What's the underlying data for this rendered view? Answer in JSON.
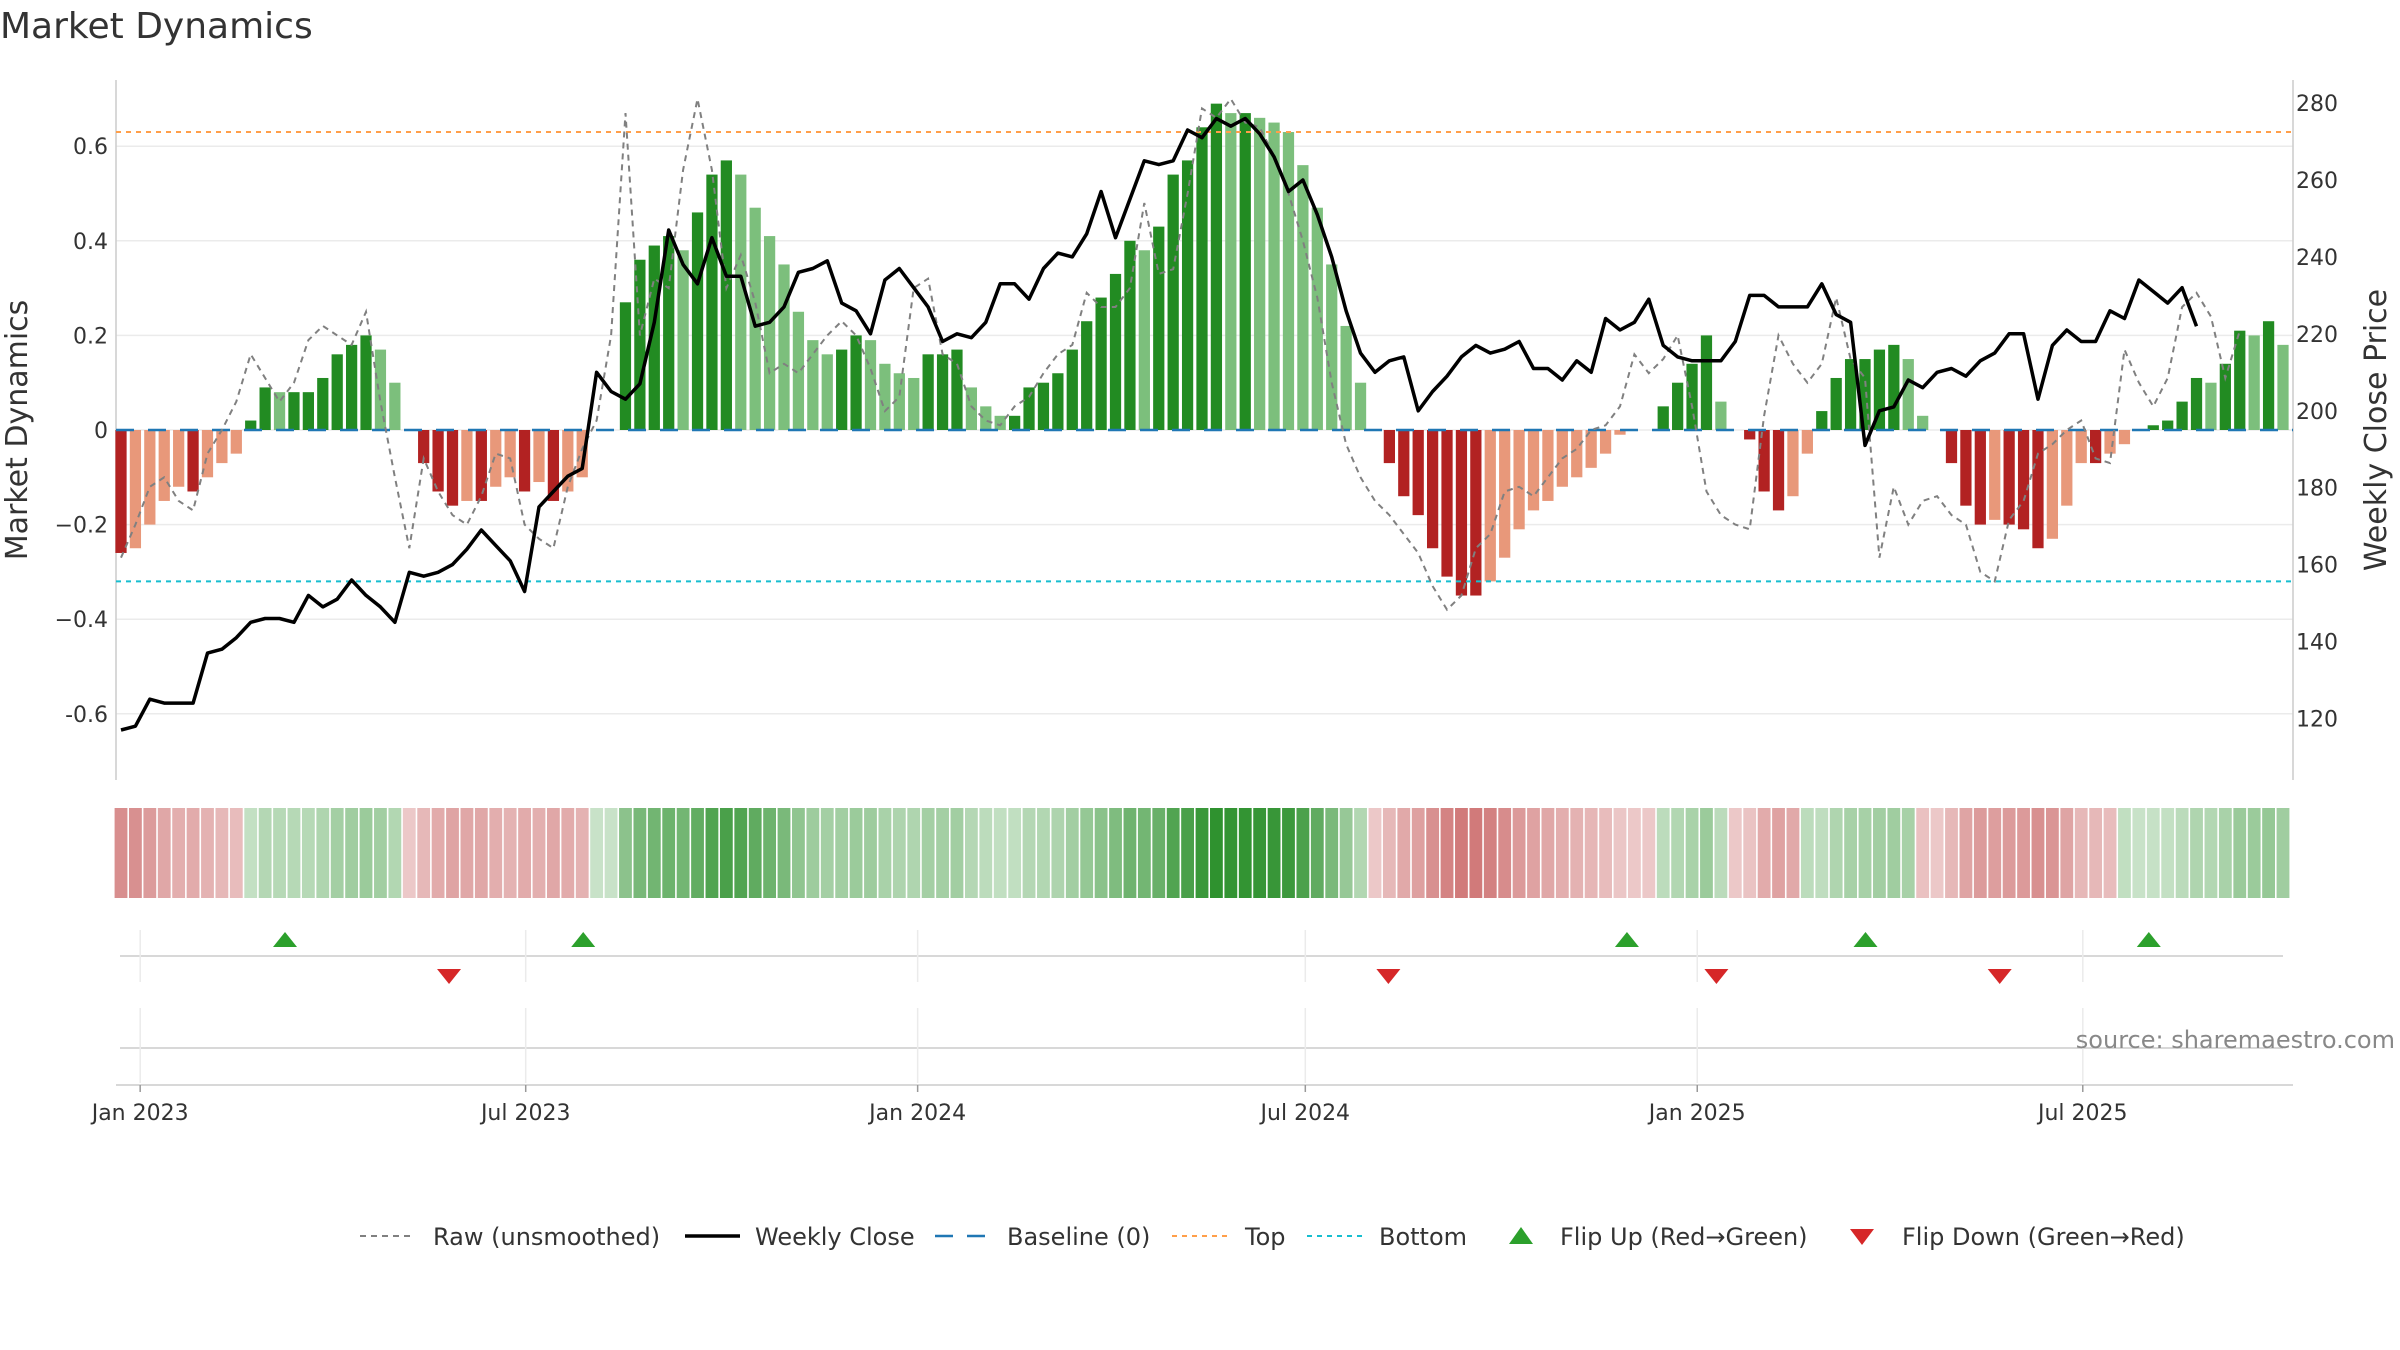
{
  "title": "Market Dynamics",
  "source": "source: sharemaestro.com",
  "chart_data": {
    "type": "bar",
    "colors": {
      "strong_green": "#228b22",
      "light_green": "#7cbf7c",
      "strong_red": "#b22222",
      "light_red": "#e8987a",
      "raw": "#808080",
      "close": "#000000",
      "baseline": "#1f77b4",
      "top": "#ff9f4a",
      "bottom": "#17becf",
      "flip_up": "#2ca02c",
      "flip_down": "#d62728"
    },
    "x_ticks": [
      "Jan 2023",
      "Jul 2023",
      "Jan 2024",
      "Jul 2024",
      "Jan 2025",
      "Jul 2025"
    ],
    "x_tick_dates": [
      "2023-01-01",
      "2023-07-01",
      "2024-01-01",
      "2024-07-01",
      "2025-01-01",
      "2025-07-01"
    ],
    "dates": [
      "2022-12-23",
      "2025-10-03"
    ],
    "ylabel": "Market Dynamics",
    "ylim": [
      -0.74,
      0.74
    ],
    "yticks": [
      -0.6,
      -0.4,
      -0.2,
      0,
      0.2,
      0.4,
      0.6
    ],
    "ytick_labels": [
      "-0.6",
      "−0.4",
      "−0.2",
      "0",
      "0.2",
      "0.4",
      "0.6"
    ],
    "y2label": "Weekly Close Price",
    "y2lim": [
      104,
      286
    ],
    "y2ticks": [
      120,
      140,
      160,
      180,
      200,
      220,
      240,
      260,
      280
    ],
    "top_line": 0.63,
    "bottom_line": -0.32,
    "bars": [
      -0.26,
      -0.25,
      -0.2,
      -0.15,
      -0.12,
      -0.13,
      -0.1,
      -0.07,
      -0.05,
      0.02,
      0.09,
      0.08,
      0.08,
      0.08,
      0.11,
      0.16,
      0.18,
      0.2,
      0.17,
      0.1,
      0,
      -0.07,
      -0.13,
      -0.16,
      -0.15,
      -0.15,
      -0.12,
      -0.1,
      -0.13,
      -0.11,
      -0.15,
      -0.13,
      -0.1,
      0,
      0,
      0.27,
      0.36,
      0.39,
      0.41,
      0.38,
      0.46,
      0.54,
      0.57,
      0.54,
      0.47,
      0.41,
      0.35,
      0.25,
      0.19,
      0.16,
      0.17,
      0.2,
      0.19,
      0.14,
      0.12,
      0.11,
      0.16,
      0.16,
      0.17,
      0.09,
      0.05,
      0.03,
      0.03,
      0.09,
      0.1,
      0.12,
      0.17,
      0.23,
      0.28,
      0.33,
      0.4,
      0.38,
      0.43,
      0.54,
      0.57,
      0.64,
      0.69,
      0.67,
      0.67,
      0.66,
      0.65,
      0.63,
      0.56,
      0.47,
      0.35,
      0.22,
      0.1,
      0,
      -0.07,
      -0.14,
      -0.18,
      -0.25,
      -0.31,
      -0.35,
      -0.35,
      -0.32,
      -0.27,
      -0.21,
      -0.17,
      -0.15,
      -0.12,
      -0.1,
      -0.08,
      -0.05,
      -0.01,
      0,
      0,
      0.05,
      0.1,
      0.14,
      0.2,
      0.06,
      0,
      -0.02,
      -0.13,
      -0.17,
      -0.14,
      -0.05,
      0.04,
      0.11,
      0.15,
      0.15,
      0.17,
      0.18,
      0.15,
      0.03,
      0,
      -0.07,
      -0.16,
      -0.2,
      -0.19,
      -0.2,
      -0.21,
      -0.25,
      -0.23,
      -0.16,
      -0.07,
      -0.07,
      -0.05,
      -0.03,
      0,
      0.01,
      0.02,
      0.06,
      0.11,
      0.1,
      0.14,
      0.21,
      0.2,
      0.23,
      0.18
    ],
    "raw": [
      -0.27,
      -0.2,
      -0.12,
      -0.1,
      -0.15,
      -0.17,
      -0.05,
      0,
      0.06,
      0.16,
      0.11,
      0.06,
      0.1,
      0.19,
      0.22,
      0.2,
      0.18,
      0.25,
      0.06,
      -0.1,
      -0.25,
      -0.06,
      -0.13,
      -0.18,
      -0.2,
      -0.14,
      -0.05,
      -0.06,
      -0.2,
      -0.23,
      -0.25,
      -0.12,
      -0.04,
      0.02,
      0.2,
      0.67,
      0.2,
      0.32,
      0.3,
      0.55,
      0.7,
      0.55,
      0.3,
      0.37,
      0.27,
      0.12,
      0.14,
      0.12,
      0.16,
      0.2,
      0.23,
      0.2,
      0.13,
      0.04,
      0.07,
      0.3,
      0.32,
      0.16,
      0.14,
      0.05,
      0.02,
      0.01,
      0.05,
      0.07,
      0.12,
      0.16,
      0.18,
      0.29,
      0.26,
      0.26,
      0.3,
      0.48,
      0.33,
      0.34,
      0.5,
      0.68,
      0.66,
      0.7,
      0.65,
      0.64,
      0.58,
      0.5,
      0.4,
      0.28,
      0.1,
      -0.03,
      -0.1,
      -0.15,
      -0.18,
      -0.22,
      -0.26,
      -0.33,
      -0.38,
      -0.35,
      -0.25,
      -0.22,
      -0.13,
      -0.12,
      -0.14,
      -0.1,
      -0.06,
      -0.04,
      0,
      0.01,
      0.05,
      0.16,
      0.12,
      0.15,
      0.2,
      0.05,
      -0.13,
      -0.18,
      -0.2,
      -0.21,
      0.03,
      0.2,
      0.14,
      0.1,
      0.14,
      0.28,
      0.15,
      0.11,
      -0.27,
      -0.12,
      -0.2,
      -0.15,
      -0.14,
      -0.18,
      -0.2,
      -0.3,
      -0.32,
      -0.19,
      -0.15,
      -0.05,
      -0.03,
      0,
      0.02,
      -0.06,
      -0.07,
      0.17,
      0.1,
      0.05,
      0.11,
      0.26,
      0.29,
      0.24,
      0.11,
      0.21
    ],
    "close": [
      117,
      118,
      125,
      124,
      124,
      124,
      137,
      138,
      141,
      145,
      146,
      146,
      145,
      152,
      149,
      151,
      156,
      152,
      149,
      145,
      158,
      157,
      158,
      160,
      164,
      169,
      165,
      161,
      153,
      175,
      179,
      183,
      185,
      210,
      205,
      203,
      207,
      223,
      247,
      238,
      233,
      245,
      235,
      235,
      222,
      223,
      227,
      236,
      237,
      239,
      228,
      226,
      220,
      234,
      237,
      232,
      227,
      218,
      220,
      219,
      223,
      233,
      233,
      229,
      237,
      241,
      240,
      246,
      257,
      245,
      255,
      265,
      264,
      265,
      273,
      271,
      276,
      274,
      276,
      272,
      266,
      257,
      260,
      251,
      240,
      226,
      215,
      210,
      213,
      214,
      200,
      205,
      209,
      214,
      217,
      215,
      216,
      218,
      211,
      211,
      208,
      213,
      210,
      224,
      221,
      223,
      229,
      217,
      214,
      213,
      213,
      213,
      218,
      230,
      230,
      227,
      227,
      227,
      233,
      225,
      223,
      191,
      200,
      201,
      208,
      206,
      210,
      211,
      209,
      213,
      215,
      220,
      220,
      203,
      217,
      221,
      218,
      218,
      226,
      224,
      234,
      231,
      228,
      232,
      222
    ],
    "regime": [
      -1,
      -1,
      -1,
      -1,
      -1,
      -1,
      -1,
      -1,
      -1,
      1,
      1,
      1,
      1,
      1,
      1,
      1,
      1,
      1,
      1,
      1,
      -1,
      -1,
      -1,
      -1,
      -1,
      -1,
      -1,
      -1,
      -1,
      -1,
      -1,
      -1,
      -1,
      1,
      1,
      1,
      1,
      1,
      1,
      1,
      1,
      1,
      1,
      1,
      1,
      1,
      1,
      1,
      1,
      1,
      1,
      1,
      1,
      1,
      1,
      1,
      1,
      1,
      1,
      1,
      1,
      1,
      1,
      1,
      1,
      1,
      1,
      1,
      1,
      1,
      1,
      1,
      1,
      1,
      1,
      1,
      1,
      1,
      1,
      1,
      1,
      1,
      1,
      1,
      1,
      1,
      1,
      -1,
      -1,
      -1,
      -1,
      -1,
      -1,
      -1,
      -1,
      -1,
      -1,
      -1,
      -1,
      -1,
      -1,
      -1,
      -1,
      -1,
      -1,
      -1,
      -1,
      1,
      1,
      1,
      1,
      1,
      -1,
      -1,
      -1,
      -1,
      -1,
      1,
      1,
      1,
      1,
      1,
      1,
      1,
      1,
      -1,
      -1,
      -1,
      -1,
      -1,
      -1,
      -1,
      -1,
      -1,
      -1,
      -1,
      -1,
      -1,
      -1,
      1,
      1,
      1,
      1,
      1,
      1,
      1,
      1,
      1,
      1,
      1,
      1
    ],
    "flip_up": [
      "2023-03-10",
      "2023-07-28",
      "2024-11-29",
      "2025-03-21",
      "2025-08-01"
    ],
    "flip_down": [
      "2023-05-26",
      "2024-08-09",
      "2025-01-10",
      "2025-05-23"
    ],
    "legend": [
      "Raw (unsmoothed)",
      "Weekly Close",
      "Baseline (0)",
      "Top",
      "Bottom",
      "Flip Up (Red→Green)",
      "Flip Down (Green→Red)"
    ],
    "legend_position": "bottom-center"
  }
}
